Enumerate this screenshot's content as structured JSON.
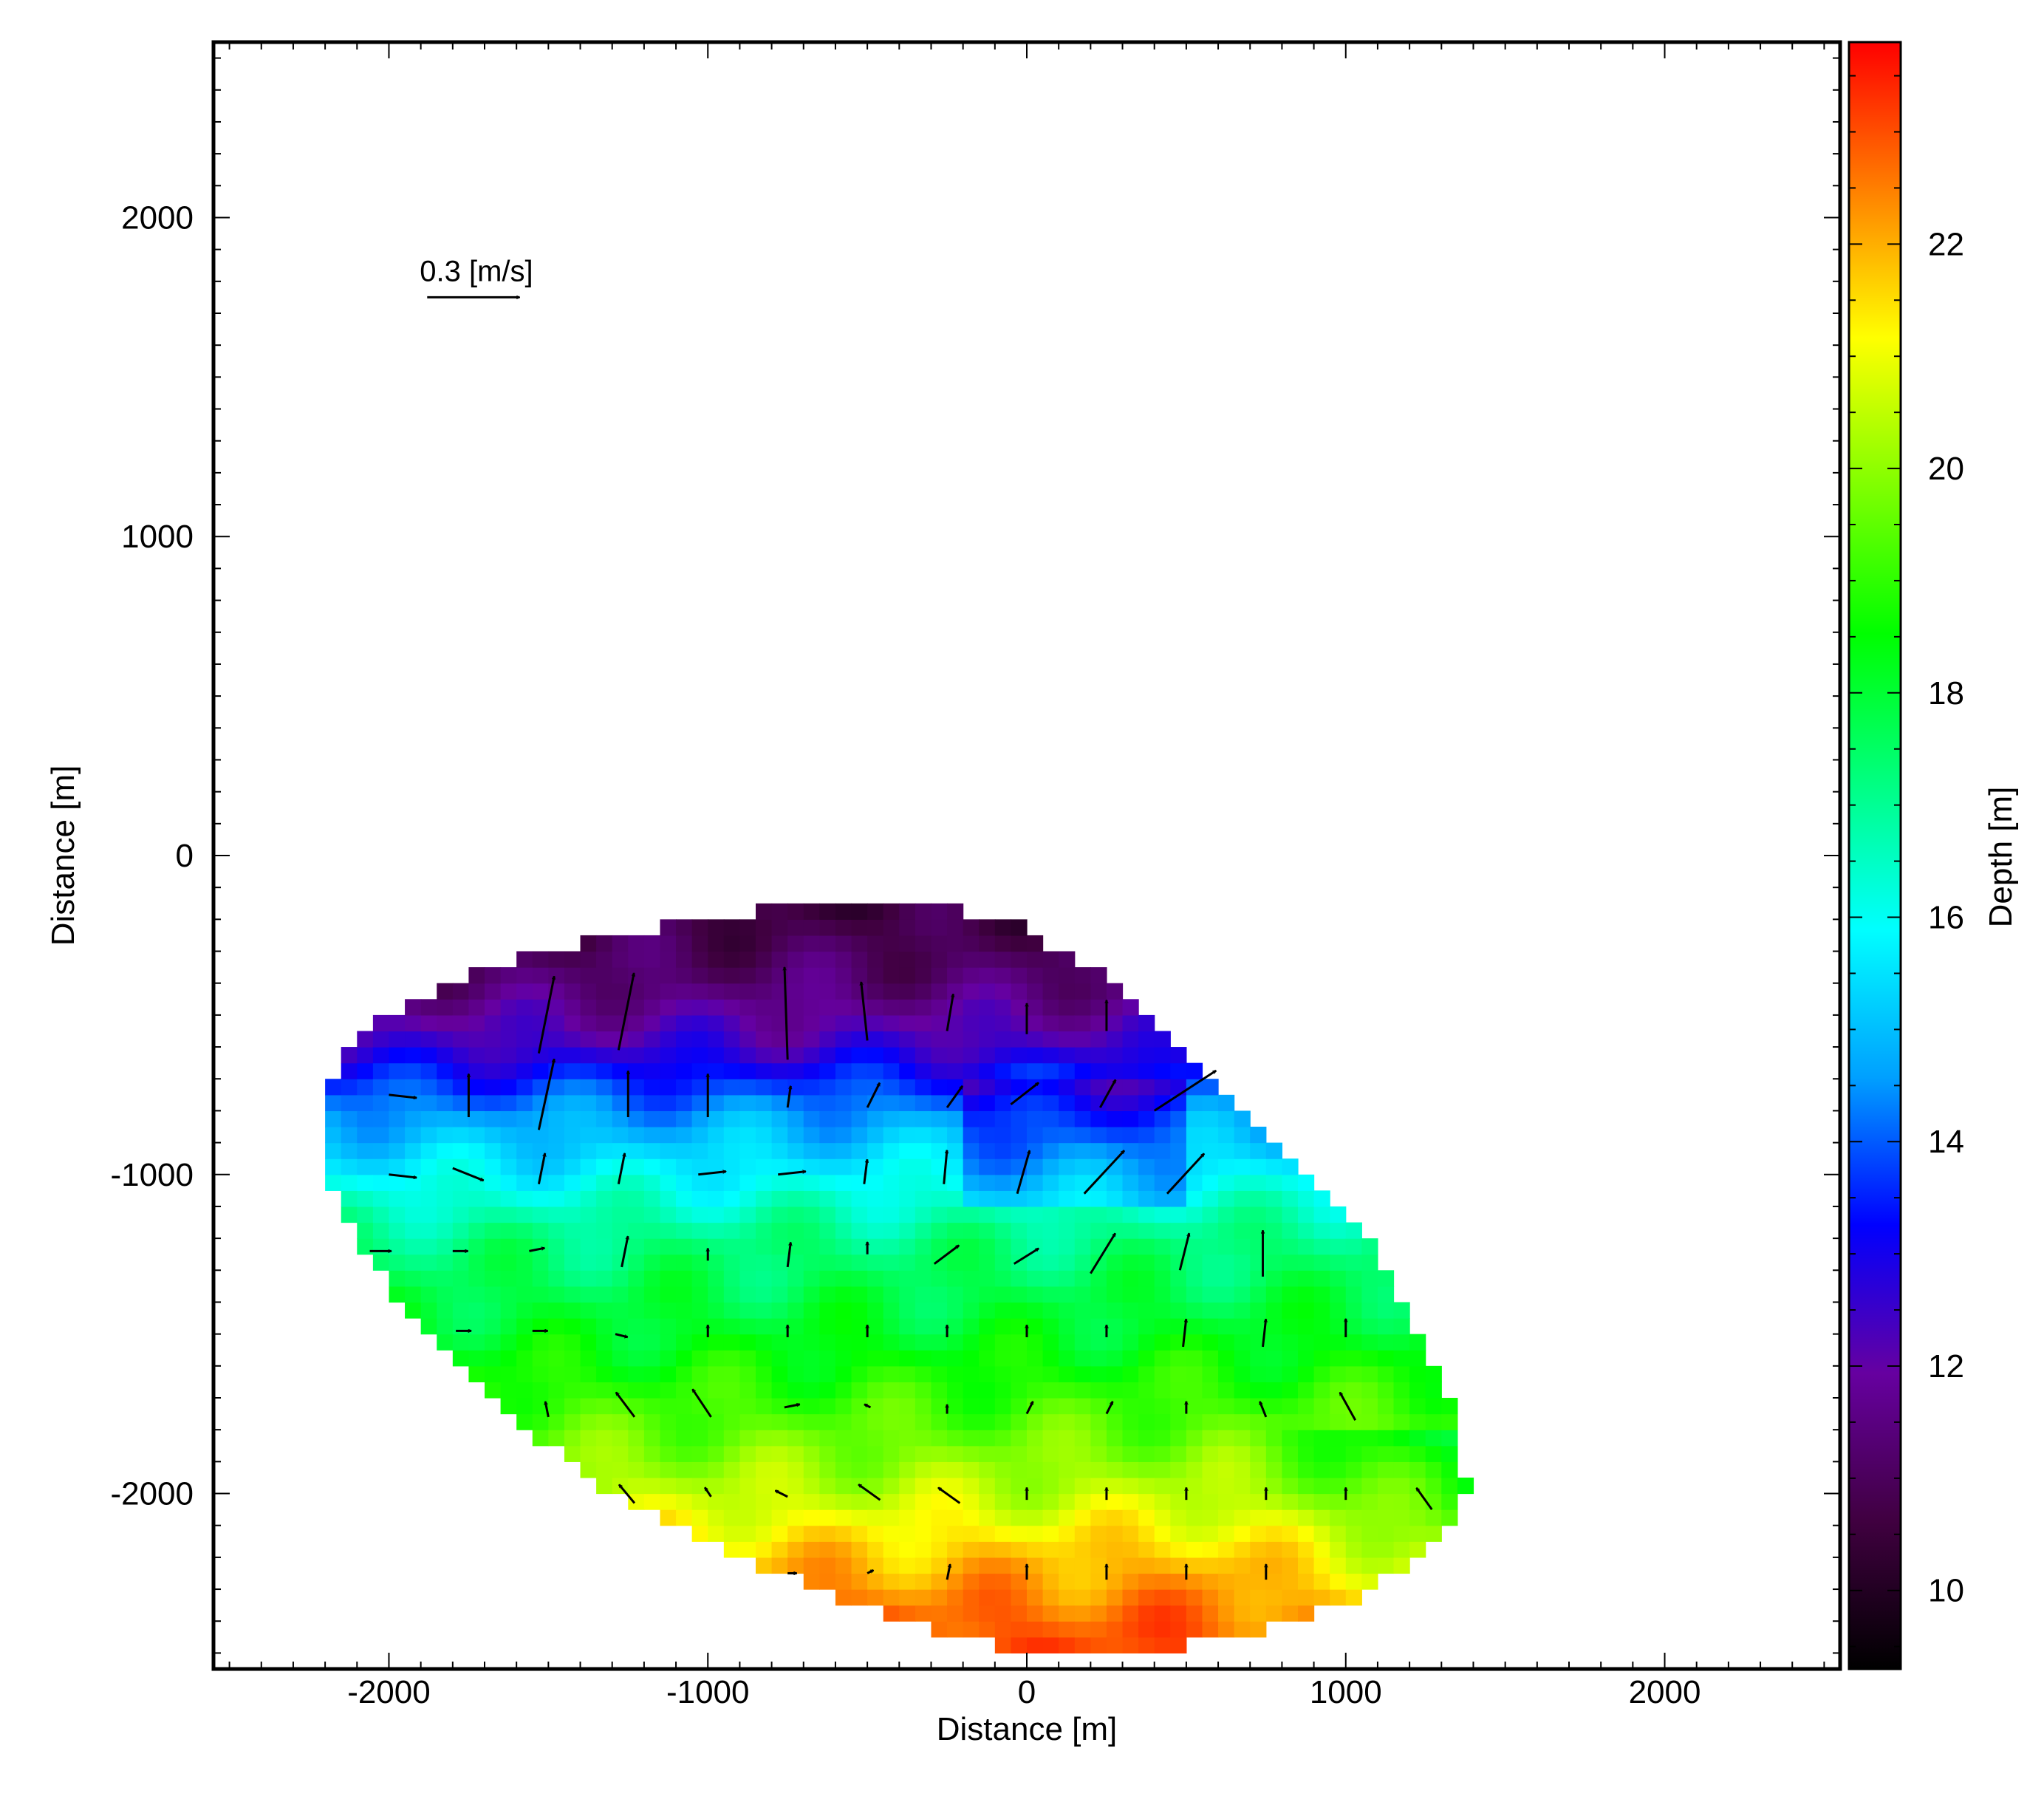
{
  "chart_data": {
    "type": "heatmap",
    "title": "",
    "xlabel": "Distance [m]",
    "ylabel": "Distance [m]",
    "xlim": [
      -2550,
      2550
    ],
    "ylim": [
      -2550,
      2550
    ],
    "xticks": [
      -2000,
      -1000,
      0,
      1000,
      2000
    ],
    "yticks": [
      -2000,
      -1000,
      0,
      1000,
      2000
    ],
    "xtick_labels": [
      "-2000",
      "-1000",
      "0",
      "1000",
      "2000"
    ],
    "ytick_labels": [
      "-2000",
      "-1000",
      "0",
      "1000",
      "2000"
    ],
    "colorbar": {
      "label": "Depth [m]",
      "range": [
        9.3,
        23.8
      ],
      "ticks": [
        10,
        12,
        14,
        16,
        18,
        20,
        22
      ],
      "tick_labels": [
        "10",
        "12",
        "14",
        "16",
        "18",
        "20",
        "22"
      ],
      "colormap": [
        "#000000",
        "#400040",
        "#6600a0",
        "#0000ff",
        "#00a0ff",
        "#00ffff",
        "#00ff80",
        "#00ff00",
        "#80ff00",
        "#ffff00",
        "#ff8000",
        "#ff0000"
      ]
    },
    "reference_vector": {
      "label": "0.3 [m/s]",
      "speed": 0.3,
      "x": -1880,
      "y": 1750
    },
    "region": {
      "polygon": [
        [
          -2200,
          -720
        ],
        [
          -2050,
          -520
        ],
        [
          -1800,
          -400
        ],
        [
          -1500,
          -300
        ],
        [
          -1000,
          -200
        ],
        [
          -600,
          -140
        ],
        [
          -300,
          -150
        ],
        [
          -50,
          -210
        ],
        [
          300,
          -400
        ],
        [
          700,
          -800
        ],
        [
          1100,
          -1250
        ],
        [
          1350,
          -1750
        ],
        [
          1380,
          -2000
        ],
        [
          1250,
          -2200
        ],
        [
          1000,
          -2350
        ],
        [
          600,
          -2460
        ],
        [
          200,
          -2510
        ],
        [
          -50,
          -2490
        ],
        [
          -400,
          -2400
        ],
        [
          -900,
          -2200
        ],
        [
          -1300,
          -2000
        ],
        [
          -1700,
          -1700
        ],
        [
          -2000,
          -1350
        ],
        [
          -2180,
          -1050
        ],
        [
          -2230,
          -850
        ]
      ],
      "depth_by_y": [
        [
          -150,
          10.5
        ],
        [
          -400,
          11.3
        ],
        [
          -600,
          12.5
        ],
        [
          -800,
          14.5
        ],
        [
          -1000,
          15.8
        ],
        [
          -1200,
          17.2
        ],
        [
          -1500,
          18.2
        ],
        [
          -1800,
          19.5
        ],
        [
          -2000,
          20.5
        ],
        [
          -2200,
          21.8
        ],
        [
          -2400,
          22.8
        ],
        [
          -2550,
          23.2
        ]
      ]
    },
    "vectors": [
      {
        "x": -1530,
        "y": -620,
        "u": 0.05,
        "v": 0.25
      },
      {
        "x": -1280,
        "y": -610,
        "u": 0.05,
        "v": 0.25
      },
      {
        "x": -750,
        "y": -640,
        "u": -0.01,
        "v": 0.3
      },
      {
        "x": -500,
        "y": -580,
        "u": -0.02,
        "v": 0.19
      },
      {
        "x": -250,
        "y": -550,
        "u": 0.02,
        "v": 0.12
      },
      {
        "x": 0,
        "y": -560,
        "u": 0.0,
        "v": 0.1
      },
      {
        "x": 250,
        "y": -550,
        "u": 0.0,
        "v": 0.1
      },
      {
        "x": -2000,
        "y": -750,
        "u": 0.09,
        "v": -0.01
      },
      {
        "x": -1750,
        "y": -820,
        "u": 0.0,
        "v": 0.14
      },
      {
        "x": -1530,
        "y": -860,
        "u": 0.05,
        "v": 0.23
      },
      {
        "x": -1250,
        "y": -820,
        "u": 0.0,
        "v": 0.15
      },
      {
        "x": -1000,
        "y": -820,
        "u": 0.0,
        "v": 0.14
      },
      {
        "x": -750,
        "y": -790,
        "u": 0.01,
        "v": 0.07
      },
      {
        "x": -500,
        "y": -790,
        "u": 0.04,
        "v": 0.08
      },
      {
        "x": -250,
        "y": -790,
        "u": 0.05,
        "v": 0.07
      },
      {
        "x": -50,
        "y": -780,
        "u": 0.09,
        "v": 0.07
      },
      {
        "x": 230,
        "y": -790,
        "u": 0.05,
        "v": 0.09
      },
      {
        "x": 400,
        "y": -800,
        "u": 0.2,
        "v": 0.13
      },
      {
        "x": -2000,
        "y": -1000,
        "u": 0.09,
        "v": -0.01
      },
      {
        "x": -1800,
        "y": -980,
        "u": 0.1,
        "v": -0.04
      },
      {
        "x": -1530,
        "y": -1030,
        "u": 0.02,
        "v": 0.1
      },
      {
        "x": -1280,
        "y": -1030,
        "u": 0.02,
        "v": 0.1
      },
      {
        "x": -1030,
        "y": -1000,
        "u": 0.09,
        "v": 0.01
      },
      {
        "x": -780,
        "y": -1000,
        "u": 0.09,
        "v": 0.01
      },
      {
        "x": -510,
        "y": -1030,
        "u": 0.01,
        "v": 0.08
      },
      {
        "x": -260,
        "y": -1030,
        "u": 0.01,
        "v": 0.11
      },
      {
        "x": -30,
        "y": -1060,
        "u": 0.04,
        "v": 0.14
      },
      {
        "x": 180,
        "y": -1060,
        "u": 0.13,
        "v": 0.14
      },
      {
        "x": 440,
        "y": -1060,
        "u": 0.12,
        "v": 0.13
      },
      {
        "x": -2060,
        "y": -1240,
        "u": 0.07,
        "v": 0.0
      },
      {
        "x": -1800,
        "y": -1240,
        "u": 0.05,
        "v": 0.0
      },
      {
        "x": -1560,
        "y": -1240,
        "u": 0.05,
        "v": 0.01
      },
      {
        "x": -1270,
        "y": -1290,
        "u": 0.02,
        "v": 0.1
      },
      {
        "x": -1000,
        "y": -1270,
        "u": 0.0,
        "v": 0.04
      },
      {
        "x": -750,
        "y": -1290,
        "u": 0.01,
        "v": 0.08
      },
      {
        "x": -500,
        "y": -1250,
        "u": 0.0,
        "v": 0.04
      },
      {
        "x": -290,
        "y": -1280,
        "u": 0.08,
        "v": 0.06
      },
      {
        "x": -40,
        "y": -1280,
        "u": 0.08,
        "v": 0.05
      },
      {
        "x": 200,
        "y": -1310,
        "u": 0.08,
        "v": 0.13
      },
      {
        "x": 480,
        "y": -1300,
        "u": 0.03,
        "v": 0.12
      },
      {
        "x": 740,
        "y": -1320,
        "u": 0.0,
        "v": 0.15
      },
      {
        "x": -1790,
        "y": -1490,
        "u": 0.05,
        "v": 0.0
      },
      {
        "x": -1550,
        "y": -1490,
        "u": 0.05,
        "v": 0.0
      },
      {
        "x": -1290,
        "y": -1500,
        "u": 0.04,
        "v": -0.01
      },
      {
        "x": -1000,
        "y": -1510,
        "u": 0.0,
        "v": 0.04
      },
      {
        "x": -750,
        "y": -1510,
        "u": 0.0,
        "v": 0.04
      },
      {
        "x": -500,
        "y": -1510,
        "u": 0.0,
        "v": 0.04
      },
      {
        "x": -250,
        "y": -1510,
        "u": 0.0,
        "v": 0.04
      },
      {
        "x": 0,
        "y": -1510,
        "u": 0.0,
        "v": 0.04
      },
      {
        "x": 250,
        "y": -1510,
        "u": 0.0,
        "v": 0.04
      },
      {
        "x": 490,
        "y": -1540,
        "u": 0.01,
        "v": 0.09
      },
      {
        "x": 740,
        "y": -1540,
        "u": 0.01,
        "v": 0.09
      },
      {
        "x": 1000,
        "y": -1510,
        "u": 0.0,
        "v": 0.06
      },
      {
        "x": -1500,
        "y": -1760,
        "u": -0.01,
        "v": 0.05
      },
      {
        "x": -1230,
        "y": -1760,
        "u": -0.06,
        "v": 0.08
      },
      {
        "x": -990,
        "y": -1760,
        "u": -0.06,
        "v": 0.09
      },
      {
        "x": -760,
        "y": -1730,
        "u": 0.05,
        "v": 0.01
      },
      {
        "x": -490,
        "y": -1730,
        "u": -0.02,
        "v": 0.01
      },
      {
        "x": -250,
        "y": -1750,
        "u": 0.0,
        "v": 0.03
      },
      {
        "x": 0,
        "y": -1750,
        "u": 0.02,
        "v": 0.04
      },
      {
        "x": 250,
        "y": -1750,
        "u": 0.02,
        "v": 0.04
      },
      {
        "x": 500,
        "y": -1750,
        "u": 0.0,
        "v": 0.04
      },
      {
        "x": 750,
        "y": -1760,
        "u": -0.02,
        "v": 0.05
      },
      {
        "x": 1030,
        "y": -1770,
        "u": -0.05,
        "v": 0.09
      },
      {
        "x": -1230,
        "y": -2030,
        "u": -0.05,
        "v": 0.06
      },
      {
        "x": -990,
        "y": -2010,
        "u": -0.02,
        "v": 0.03
      },
      {
        "x": -750,
        "y": -2010,
        "u": -0.04,
        "v": 0.02
      },
      {
        "x": -460,
        "y": -2020,
        "u": -0.07,
        "v": 0.05
      },
      {
        "x": -210,
        "y": -2030,
        "u": -0.07,
        "v": 0.05
      },
      {
        "x": 0,
        "y": -2020,
        "u": 0.0,
        "v": 0.04
      },
      {
        "x": 250,
        "y": -2020,
        "u": 0.0,
        "v": 0.04
      },
      {
        "x": 500,
        "y": -2020,
        "u": 0.0,
        "v": 0.04
      },
      {
        "x": 750,
        "y": -2020,
        "u": 0.0,
        "v": 0.04
      },
      {
        "x": 1000,
        "y": -2020,
        "u": 0.0,
        "v": 0.04
      },
      {
        "x": 1270,
        "y": -2050,
        "u": -0.05,
        "v": 0.07
      },
      {
        "x": -750,
        "y": -2250,
        "u": 0.03,
        "v": 0.0
      },
      {
        "x": -500,
        "y": -2250,
        "u": 0.02,
        "v": 0.01
      },
      {
        "x": -250,
        "y": -2270,
        "u": 0.01,
        "v": 0.05
      },
      {
        "x": 0,
        "y": -2270,
        "u": 0.0,
        "v": 0.05
      },
      {
        "x": 250,
        "y": -2270,
        "u": 0.0,
        "v": 0.05
      },
      {
        "x": 500,
        "y": -2270,
        "u": 0.0,
        "v": 0.05
      },
      {
        "x": 750,
        "y": -2270,
        "u": 0.0,
        "v": 0.05
      }
    ]
  }
}
